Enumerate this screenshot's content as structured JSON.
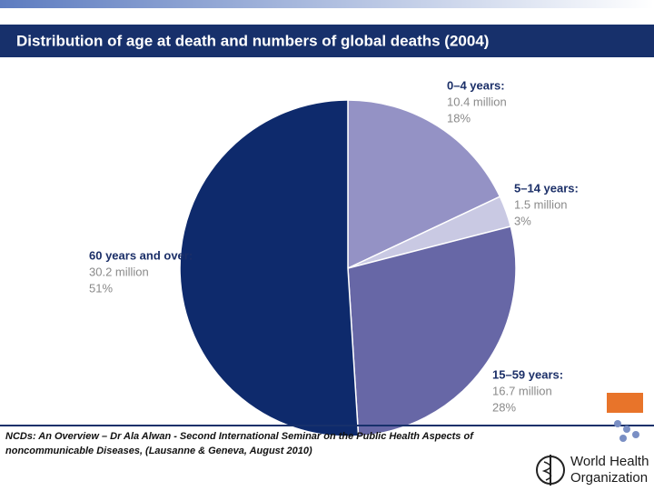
{
  "chart_data": {
    "type": "pie",
    "title": "Distribution of age at death and numbers of global deaths (2004)",
    "categories": [
      "0–4 years:",
      "5–14 years:",
      "15–59 years:",
      "60 years and over:"
    ],
    "values": [
      18,
      3,
      28,
      51
    ],
    "value_labels": [
      "18%",
      "3%",
      "28%",
      "51%"
    ],
    "deaths": [
      {
        "value": 10.4,
        "label": "10.4 million"
      },
      {
        "value": 1.5,
        "label": "1.5 million"
      },
      {
        "value": 16.7,
        "label": "16.7 million"
      },
      {
        "value": 30.2,
        "label": "30.2 million"
      }
    ],
    "colors": [
      "#9492c5",
      "#c9c9e3",
      "#6767a6",
      "#0e2a6c"
    ]
  },
  "footer": {
    "citation": [
      "NCDs: An Overview – Dr Ala Alwan - Second International Seminar on the Public Health Aspects of",
      "noncommunicable Diseases, (Lausanne & Geneva, August 2010)"
    ],
    "logo": [
      "World Health",
      "Organization"
    ]
  }
}
